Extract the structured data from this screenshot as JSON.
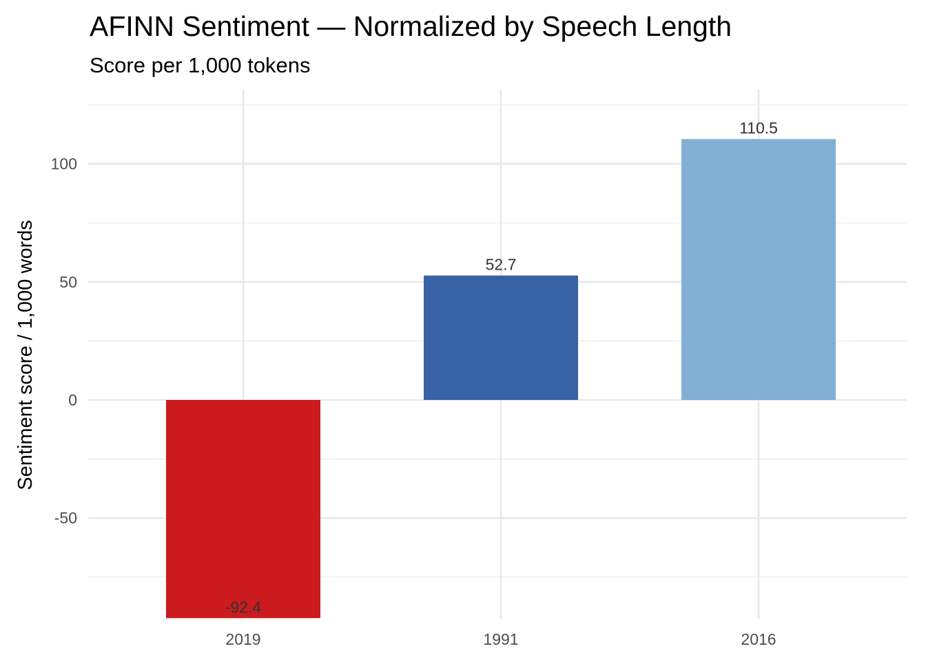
{
  "chart_data": {
    "type": "bar",
    "title": "AFINN Sentiment — Normalized by Speech Length",
    "subtitle": "Score per 1,000 tokens",
    "xlabel": "",
    "ylabel": "Sentiment score / 1,000 words",
    "categories": [
      "2019",
      "1991",
      "2016"
    ],
    "values": [
      -92.4,
      52.7,
      110.5
    ],
    "value_labels": [
      "-92.4",
      "52.7",
      "110.5"
    ],
    "colors": [
      "#CB1B1E",
      "#3762A5",
      "#81B0D2"
    ],
    "ylim": [
      -92.4,
      125
    ],
    "yticks": [
      -50,
      0,
      50,
      100
    ],
    "ytick_labels": [
      "-50",
      "0",
      "50",
      "100"
    ],
    "minor_yticks": [
      -75,
      -25,
      25,
      75,
      125
    ],
    "grid": true,
    "legend": "none"
  }
}
